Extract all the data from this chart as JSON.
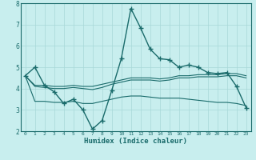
{
  "xlabel": "Humidex (Indice chaleur)",
  "background_color": "#c8eeee",
  "grid_color": "#a8d8d8",
  "line_color": "#1a6b6b",
  "xlim": [
    -0.5,
    23.5
  ],
  "ylim": [
    2,
    8
  ],
  "xticks": [
    0,
    1,
    2,
    3,
    4,
    5,
    6,
    7,
    8,
    9,
    10,
    11,
    12,
    13,
    14,
    15,
    16,
    17,
    18,
    19,
    20,
    21,
    22,
    23
  ],
  "yticks": [
    2,
    3,
    4,
    5,
    6,
    7,
    8
  ],
  "lines": [
    {
      "x": [
        0,
        1,
        2,
        3,
        4,
        5,
        6,
        7,
        8,
        9,
        10,
        11,
        12,
        13,
        14,
        15,
        16,
        17,
        18,
        19,
        20,
        21,
        22,
        23
      ],
      "y": [
        4.6,
        5.0,
        4.15,
        3.85,
        3.3,
        3.5,
        3.0,
        2.1,
        2.5,
        3.9,
        5.4,
        7.75,
        6.85,
        5.85,
        5.4,
        5.35,
        5.0,
        5.1,
        5.0,
        4.75,
        4.7,
        4.75,
        4.1,
        3.1
      ],
      "marker": true,
      "lw": 1.0
    },
    {
      "x": [
        0,
        1,
        2,
        3,
        4,
        5,
        6,
        7,
        8,
        9,
        10,
        11,
        12,
        13,
        14,
        15,
        16,
        17,
        18,
        19,
        20,
        21,
        22,
        23
      ],
      "y": [
        4.6,
        4.15,
        4.15,
        4.1,
        4.1,
        4.15,
        4.1,
        4.1,
        4.2,
        4.3,
        4.4,
        4.5,
        4.5,
        4.5,
        4.45,
        4.5,
        4.6,
        4.6,
        4.65,
        4.65,
        4.65,
        4.7,
        4.7,
        4.6
      ],
      "marker": false,
      "lw": 0.8
    },
    {
      "x": [
        0,
        1,
        2,
        3,
        4,
        5,
        6,
        7,
        8,
        9,
        10,
        11,
        12,
        13,
        14,
        15,
        16,
        17,
        18,
        19,
        20,
        21,
        22,
        23
      ],
      "y": [
        4.6,
        4.1,
        4.05,
        4.0,
        4.0,
        4.05,
        4.0,
        3.95,
        4.05,
        4.2,
        4.3,
        4.4,
        4.4,
        4.4,
        4.35,
        4.4,
        4.5,
        4.5,
        4.55,
        4.55,
        4.55,
        4.6,
        4.6,
        4.5
      ],
      "marker": false,
      "lw": 0.8
    },
    {
      "x": [
        0,
        1,
        2,
        3,
        4,
        5,
        6,
        7,
        8,
        9,
        10,
        11,
        12,
        13,
        14,
        15,
        16,
        17,
        18,
        19,
        20,
        21,
        22,
        23
      ],
      "y": [
        4.6,
        3.4,
        3.4,
        3.35,
        3.35,
        3.4,
        3.3,
        3.3,
        3.4,
        3.5,
        3.6,
        3.65,
        3.65,
        3.6,
        3.55,
        3.55,
        3.55,
        3.5,
        3.45,
        3.4,
        3.35,
        3.35,
        3.3,
        3.2
      ],
      "marker": false,
      "lw": 0.8
    }
  ]
}
